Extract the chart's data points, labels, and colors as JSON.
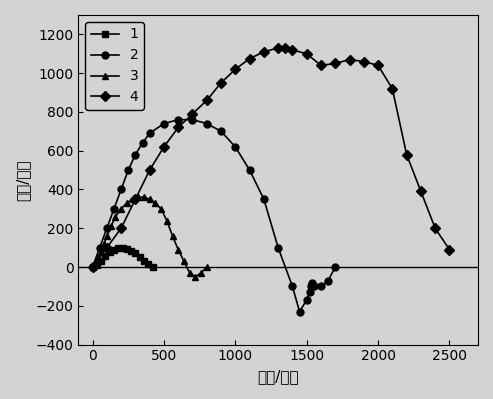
{
  "series1": {
    "label": "1",
    "marker": "s",
    "x": [
      0,
      30,
      60,
      90,
      120,
      150,
      180,
      210,
      240,
      270,
      300,
      330,
      360,
      390,
      420
    ],
    "y": [
      0,
      10,
      30,
      55,
      75,
      90,
      100,
      100,
      95,
      85,
      70,
      50,
      30,
      15,
      0
    ]
  },
  "series2": {
    "label": "2",
    "marker": "o",
    "x": [
      0,
      50,
      100,
      150,
      200,
      250,
      300,
      350,
      400,
      500,
      600,
      700,
      800,
      900,
      1000,
      1100,
      1200,
      1300,
      1400,
      1450,
      1500,
      1520,
      1530,
      1540,
      1550,
      1600,
      1650,
      1700
    ],
    "y": [
      0,
      100,
      200,
      300,
      400,
      500,
      580,
      640,
      690,
      740,
      760,
      760,
      740,
      700,
      620,
      500,
      350,
      100,
      -100,
      -230,
      -170,
      -130,
      -100,
      -80,
      -100,
      -100,
      -70,
      0
    ]
  },
  "series3": {
    "label": "3",
    "marker": "^",
    "x": [
      0,
      20,
      40,
      60,
      80,
      100,
      130,
      160,
      200,
      240,
      280,
      320,
      360,
      400,
      440,
      480,
      520,
      560,
      600,
      640,
      680,
      720,
      760,
      800
    ],
    "y": [
      0,
      20,
      50,
      80,
      120,
      160,
      210,
      260,
      300,
      330,
      350,
      360,
      360,
      350,
      330,
      300,
      240,
      160,
      90,
      30,
      -30,
      -50,
      -30,
      0
    ]
  },
  "series4": {
    "label": "4",
    "marker": "D",
    "x": [
      0,
      100,
      200,
      300,
      400,
      500,
      600,
      700,
      800,
      900,
      1000,
      1100,
      1200,
      1300,
      1350,
      1400,
      1500,
      1600,
      1700,
      1800,
      1900,
      2000,
      2100,
      2200,
      2300,
      2400,
      2500
    ],
    "y": [
      0,
      100,
      200,
      350,
      500,
      620,
      720,
      790,
      860,
      950,
      1020,
      1075,
      1110,
      1130,
      1130,
      1120,
      1100,
      1040,
      1050,
      1070,
      1060,
      1040,
      920,
      580,
      390,
      200,
      90
    ]
  },
  "xlabel": "阻抗/欧姆",
  "ylabel": "电抗/欧姆",
  "xlim": [
    -100,
    2700
  ],
  "ylim": [
    -400,
    1300
  ],
  "yticks": [
    -400,
    -200,
    0,
    200,
    400,
    600,
    800,
    1000,
    1200
  ],
  "xticks": [
    0,
    500,
    1000,
    1500,
    2000,
    2500
  ],
  "color": "black",
  "linewidth": 1.2,
  "markersize": 5
}
